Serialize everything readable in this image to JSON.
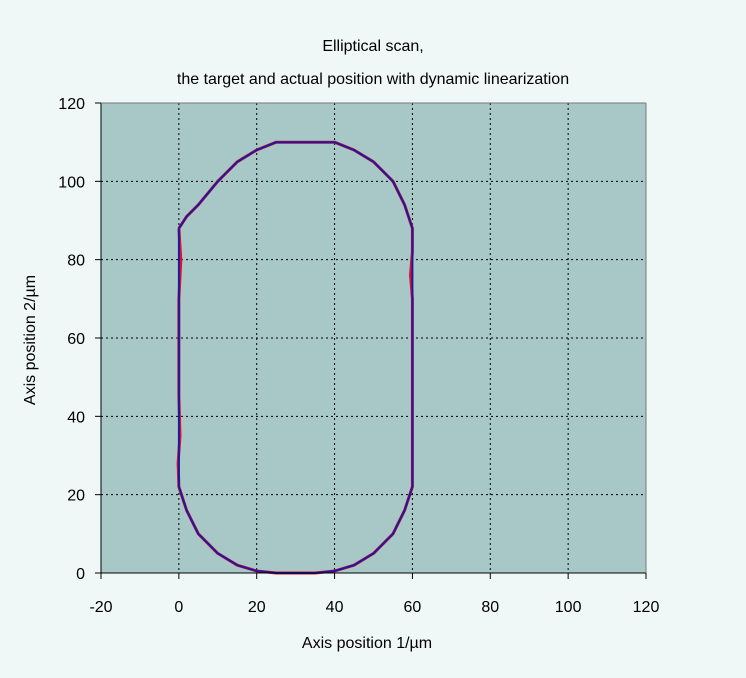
{
  "chart_data": {
    "type": "line",
    "title": "Elliptical scan,",
    "subtitle": "the target and actual position with dynamic linearization",
    "xlabel": "Axis position 1/µm",
    "ylabel": "Axis position 2/µm",
    "xlim": [
      -20,
      120
    ],
    "ylim": [
      0,
      120
    ],
    "xticks": [
      -20,
      0,
      20,
      40,
      60,
      80,
      100,
      120
    ],
    "yticks": [
      0,
      20,
      40,
      60,
      80,
      100,
      120
    ],
    "grid": true,
    "plot_background": "#a8c8c8",
    "series": [
      {
        "color": "#e0102a",
        "points": [
          [
            0,
            88
          ],
          [
            0.5,
            80
          ],
          [
            0,
            70
          ],
          [
            0,
            55
          ],
          [
            0,
            45
          ],
          [
            0.3,
            35
          ],
          [
            -0.2,
            28
          ],
          [
            0,
            22
          ],
          [
            2,
            16
          ],
          [
            5,
            10
          ],
          [
            10,
            5
          ],
          [
            15,
            2
          ],
          [
            20,
            0.5
          ],
          [
            25,
            0
          ],
          [
            30,
            0
          ],
          [
            35,
            0
          ],
          [
            40,
            0.5
          ],
          [
            45,
            2
          ],
          [
            50,
            5
          ],
          [
            55,
            10
          ],
          [
            58,
            16
          ],
          [
            60,
            22
          ],
          [
            60,
            30
          ],
          [
            60,
            40
          ],
          [
            60,
            50
          ],
          [
            60,
            60
          ],
          [
            60,
            70
          ],
          [
            59.5,
            76
          ],
          [
            60,
            82
          ],
          [
            60,
            88
          ],
          [
            58,
            94
          ],
          [
            55,
            100
          ],
          [
            50,
            105
          ],
          [
            45,
            108
          ],
          [
            40,
            110
          ],
          [
            35,
            110
          ],
          [
            30,
            110
          ],
          [
            25,
            110
          ],
          [
            20,
            108
          ],
          [
            15,
            105
          ],
          [
            10,
            100
          ],
          [
            5,
            94
          ],
          [
            2,
            91
          ],
          [
            0,
            88
          ]
        ]
      },
      {
        "color": "#1a1aa0",
        "points": [
          [
            0,
            88
          ],
          [
            0,
            80
          ],
          [
            0,
            70
          ],
          [
            0,
            60
          ],
          [
            0,
            50
          ],
          [
            0,
            40
          ],
          [
            0,
            30
          ],
          [
            0,
            22
          ],
          [
            2,
            16
          ],
          [
            5,
            10
          ],
          [
            10,
            5
          ],
          [
            15,
            2
          ],
          [
            20,
            0.5
          ],
          [
            25,
            0
          ],
          [
            30,
            0
          ],
          [
            35,
            0
          ],
          [
            40,
            0.5
          ],
          [
            45,
            2
          ],
          [
            50,
            5
          ],
          [
            55,
            10
          ],
          [
            58,
            16
          ],
          [
            60,
            22
          ],
          [
            60,
            30
          ],
          [
            60,
            40
          ],
          [
            60,
            50
          ],
          [
            60,
            60
          ],
          [
            60,
            70
          ],
          [
            60,
            80
          ],
          [
            60,
            88
          ],
          [
            58,
            94
          ],
          [
            55,
            100
          ],
          [
            50,
            105
          ],
          [
            45,
            108
          ],
          [
            40,
            110
          ],
          [
            35,
            110
          ],
          [
            30,
            110
          ],
          [
            25,
            110
          ],
          [
            20,
            108
          ],
          [
            15,
            105
          ],
          [
            10,
            100
          ],
          [
            5,
            94
          ],
          [
            2,
            91
          ],
          [
            0,
            88
          ]
        ]
      }
    ]
  }
}
